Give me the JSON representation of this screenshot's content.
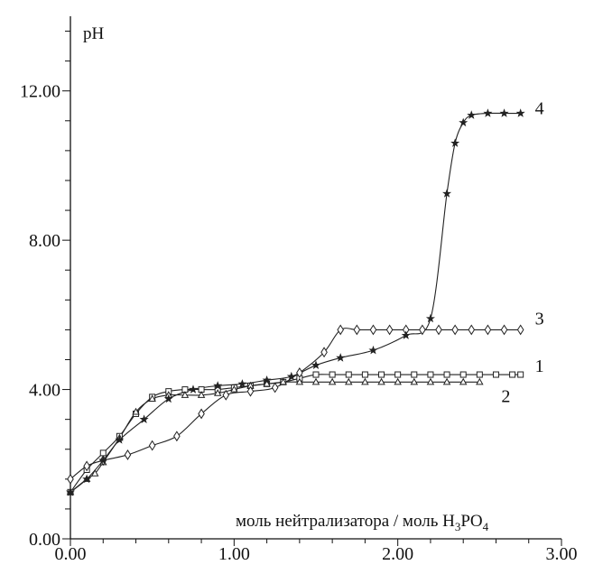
{
  "chart_data": {
    "type": "line",
    "ylabel": "pH",
    "xlabel": "моль нейтрализатора / моль H",
    "xlabel_sub1": "3",
    "xlabel_mid": "PO",
    "xlabel_sub2": "4",
    "xlim": [
      0,
      3
    ],
    "ylim": [
      0,
      14
    ],
    "x_ticks": [
      {
        "value": 0,
        "label": "0.00"
      },
      {
        "value": 1,
        "label": "1.00"
      },
      {
        "value": 2,
        "label": "2.00"
      },
      {
        "value": 3,
        "label": "3.00"
      }
    ],
    "y_ticks": [
      {
        "value": 0,
        "label": "0.00"
      },
      {
        "value": 4,
        "label": "4.00"
      },
      {
        "value": 8,
        "label": "8.00"
      },
      {
        "value": 12,
        "label": "12.00"
      }
    ],
    "grid": false,
    "series": [
      {
        "name": "1",
        "marker": "square",
        "x": [
          0.0,
          0.1,
          0.2,
          0.3,
          0.4,
          0.5,
          0.6,
          0.7,
          0.8,
          0.9,
          1.0,
          1.1,
          1.2,
          1.3,
          1.4,
          1.5,
          1.6,
          1.7,
          1.8,
          1.9,
          2.0,
          2.1,
          2.2,
          2.3,
          2.4,
          2.5,
          2.6,
          2.7,
          2.75
        ],
        "y": [
          1.25,
          1.85,
          2.3,
          2.75,
          3.35,
          3.8,
          3.95,
          4.0,
          4.0,
          4.0,
          4.05,
          4.1,
          4.15,
          4.2,
          4.3,
          4.4,
          4.4,
          4.4,
          4.4,
          4.4,
          4.4,
          4.4,
          4.4,
          4.4,
          4.4,
          4.4,
          4.4,
          4.4,
          4.4
        ]
      },
      {
        "name": "2",
        "marker": "triangle",
        "x": [
          0.0,
          0.1,
          0.15,
          0.2,
          0.3,
          0.4,
          0.5,
          0.6,
          0.7,
          0.8,
          0.9,
          1.0,
          1.1,
          1.2,
          1.3,
          1.4,
          1.5,
          1.6,
          1.7,
          1.8,
          1.9,
          2.0,
          2.1,
          2.2,
          2.3,
          2.4,
          2.5
        ],
        "y": [
          1.25,
          1.6,
          1.75,
          2.05,
          2.7,
          3.4,
          3.75,
          3.85,
          3.85,
          3.85,
          3.9,
          4.0,
          4.1,
          4.15,
          4.2,
          4.2,
          4.2,
          4.2,
          4.2,
          4.2,
          4.2,
          4.2,
          4.2,
          4.2,
          4.2,
          4.2,
          4.2
        ]
      },
      {
        "name": "3",
        "marker": "diamond",
        "x": [
          0.0,
          0.1,
          0.2,
          0.35,
          0.5,
          0.65,
          0.8,
          0.95,
          1.1,
          1.25,
          1.4,
          1.55,
          1.65,
          1.75,
          1.85,
          1.95,
          2.05,
          2.15,
          2.25,
          2.35,
          2.45,
          2.55,
          2.65,
          2.75
        ],
        "y": [
          1.6,
          1.95,
          2.1,
          2.25,
          2.5,
          2.75,
          3.35,
          3.85,
          3.95,
          4.05,
          4.45,
          5.0,
          5.6,
          5.6,
          5.6,
          5.6,
          5.6,
          5.6,
          5.6,
          5.6,
          5.6,
          5.6,
          5.6,
          5.6
        ]
      },
      {
        "name": "4",
        "marker": "star",
        "x": [
          0.0,
          0.1,
          0.2,
          0.3,
          0.45,
          0.6,
          0.75,
          0.9,
          1.05,
          1.2,
          1.35,
          1.5,
          1.65,
          1.85,
          2.05,
          2.2,
          2.3,
          2.35,
          2.4,
          2.45,
          2.55,
          2.65,
          2.75
        ],
        "y": [
          1.25,
          1.6,
          2.1,
          2.65,
          3.2,
          3.75,
          4.0,
          4.1,
          4.15,
          4.25,
          4.35,
          4.65,
          4.85,
          5.05,
          5.45,
          5.9,
          9.25,
          10.6,
          11.15,
          11.35,
          11.4,
          11.4,
          11.4
        ]
      }
    ]
  }
}
